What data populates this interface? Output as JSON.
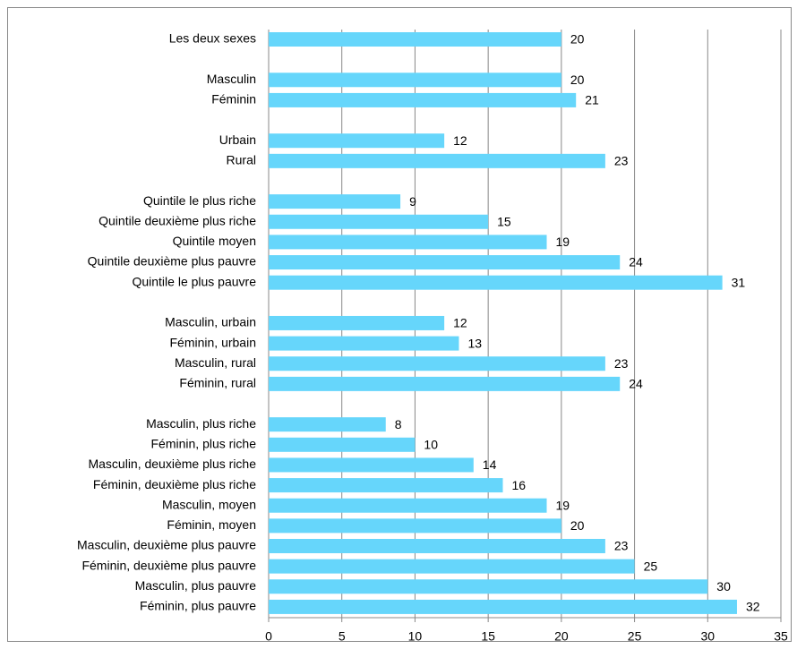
{
  "chart_data": {
    "type": "bar",
    "orientation": "horizontal",
    "color": "#66d6fb",
    "categories": [
      "Les deux sexes",
      null,
      "Masculin",
      "Féminin",
      null,
      "Urbain",
      "Rural",
      null,
      "Quintile le plus riche",
      "Quintile deuxième plus riche",
      "Quintile moyen",
      "Quintile deuxième plus pauvre",
      "Quintile le plus pauvre",
      null,
      "Masculin, urbain",
      "Féminin, urbain",
      "Masculin, rural",
      "Féminin, rural",
      null,
      "Masculin, plus riche",
      "Féminin, plus riche",
      "Masculin, deuxième plus riche",
      "Féminin, deuxième plus riche",
      "Masculin, moyen",
      "Féminin, moyen",
      "Masculin, deuxième plus pauvre",
      "Féminin, deuxième plus pauvre",
      "Masculin, plus pauvre",
      "Féminin, plus pauvre"
    ],
    "values": [
      20,
      null,
      20,
      21,
      null,
      12,
      23,
      null,
      9,
      15,
      19,
      24,
      31,
      null,
      12,
      13,
      23,
      24,
      null,
      8,
      10,
      14,
      16,
      19,
      20,
      23,
      25,
      30,
      32
    ],
    "xlim": [
      0,
      35
    ],
    "xticks": [
      0,
      5,
      10,
      15,
      20,
      25,
      30,
      35
    ],
    "grid": true
  }
}
